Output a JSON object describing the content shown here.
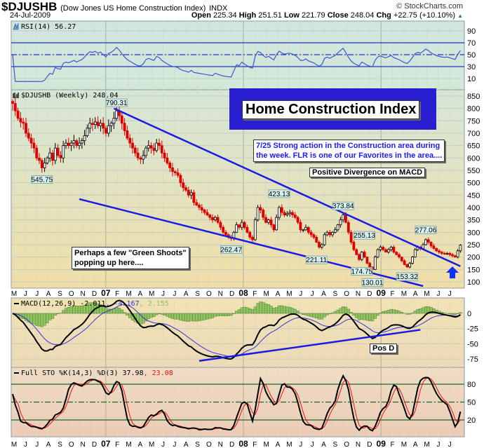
{
  "header": {
    "symbol": "$DJUSHB",
    "name": "(Dow Jones US Home Construction Index)",
    "exchange": "INDX",
    "copyright": "© StockCharts.com",
    "date": "24-Jul-2009",
    "open_label": "Open",
    "open": "225.34",
    "high_label": "High",
    "high": "251.51",
    "low_label": "Low",
    "low": "221.79",
    "close_label": "Close",
    "close": "248.04",
    "chg_label": "Chg",
    "chg": "+22.75 (+10.10%)",
    "chg_icon": "up-triangle-icon"
  },
  "annotations": {
    "title_box": "Home Construction Index",
    "note_line1": "7/25  Strong action in the Construction area during",
    "note_line2": "the week.  FLR is one of our Favorites in the area....",
    "divergence": "Positive Divergence on MACD",
    "shoots_line1": "Perhaps a few \"Green Shoots\"",
    "shoots_line2": "popping up here....",
    "pos_d": "Pos D"
  },
  "colors": {
    "up_candle": "#ffffff",
    "down_candle": "#e00000",
    "trendline": "#1a1ae6",
    "macd_hist": "#8fc45e",
    "rsi": "#3a56d6",
    "signal": "#3333dd",
    "stoch_d": "#ee1111",
    "note_text": "#1a1aff",
    "title_box_bg": "#2a1fd0"
  },
  "chart_data": [
    {
      "type": "line",
      "panel": "RSI",
      "legend": "RSI(14) 56.27",
      "ylim": [
        0,
        100
      ],
      "yticks": [
        "90",
        "70",
        "50",
        "30",
        "10"
      ],
      "reference_lines": [
        70,
        50,
        30
      ]
    },
    {
      "type": "candlestick",
      "panel": "price",
      "legend": "$DJUSHB (Weekly) 248.04",
      "ylim": [
        80,
        870
      ],
      "yticks": [
        "850",
        "800",
        "750",
        "700",
        "650",
        "600",
        "550",
        "500",
        "450",
        "400",
        "350",
        "300",
        "250",
        "200",
        "150",
        "100"
      ],
      "x_start": "May 2006",
      "x_end": "24-Jul-2009",
      "frequency": "weekly",
      "closes": [
        820,
        790,
        760,
        745,
        740,
        700,
        680,
        660,
        640,
        600,
        590,
        560,
        580,
        600,
        620,
        590,
        640,
        610,
        600,
        650,
        660,
        650,
        660,
        670,
        650,
        660,
        670,
        690,
        720,
        740,
        735,
        745,
        730,
        740,
        720,
        700,
        730,
        740,
        760,
        790,
        770,
        740,
        710,
        680,
        660,
        640,
        620,
        600,
        595,
        610,
        640,
        650,
        640,
        630,
        660,
        650,
        620,
        600,
        580,
        560,
        545,
        540,
        530,
        500,
        480,
        470,
        450,
        460,
        420,
        410,
        400,
        390,
        380,
        370,
        360,
        350,
        360,
        340,
        320,
        300,
        290,
        280,
        275,
        300,
        330,
        320,
        340,
        320,
        300,
        280,
        270,
        350,
        400,
        390,
        360,
        340,
        350,
        330,
        310,
        360,
        400,
        380,
        370,
        375,
        380,
        370,
        360,
        340,
        310,
        310,
        320,
        300,
        290,
        280,
        260,
        240,
        250,
        290,
        300,
        290,
        300,
        310,
        330,
        350,
        370,
        340,
        300,
        260,
        230,
        210,
        190,
        220,
        200,
        175,
        160,
        150,
        200,
        230,
        240,
        230,
        220,
        230,
        240,
        220,
        210,
        200,
        185,
        170,
        160,
        175,
        200,
        230,
        240,
        235,
        250,
        270,
        260,
        245,
        235,
        225,
        220,
        215,
        213,
        215,
        210,
        205,
        200,
        225,
        248
      ],
      "point_labels": [
        {
          "week": 11,
          "value": 545.75,
          "text": "545.75",
          "pos": "below"
        },
        {
          "week": 39,
          "value": 790.31,
          "text": "790.31",
          "pos": "above"
        },
        {
          "week": 82,
          "value": 262.47,
          "text": "262.47",
          "pos": "below"
        },
        {
          "week": 100,
          "value": 423.13,
          "text": "423.13",
          "pos": "above"
        },
        {
          "week": 124,
          "value": 373.84,
          "text": "373.84",
          "pos": "above"
        },
        {
          "week": 114,
          "value": 221.11,
          "text": "221.11",
          "pos": "below"
        },
        {
          "week": 132,
          "value": 255.13,
          "text": "255.13",
          "pos": "above"
        },
        {
          "week": 131,
          "value": 174.75,
          "text": "174.75",
          "pos": "below"
        },
        {
          "week": 135,
          "value": 130.01,
          "text": "130.01",
          "pos": "below"
        },
        {
          "week": 148,
          "value": 153.32,
          "text": "153.32",
          "pos": "below"
        },
        {
          "week": 155,
          "value": 277.06,
          "text": "277.06",
          "pos": "above"
        }
      ],
      "trendlines": [
        {
          "from": {
            "week": 38,
            "value": 800
          },
          "to": {
            "week": 168,
            "value": 163
          }
        },
        {
          "from": {
            "week": 25,
            "value": 434
          },
          "to": {
            "week": 154,
            "value": 83
          }
        }
      ]
    },
    {
      "type": "line",
      "panel": "MACD",
      "legend_main": "MACD(12,26,9) -2.011",
      "legend_signal": ", -4.167",
      "legend_hist": ", 2.155",
      "ylim": [
        -90,
        25
      ],
      "yticks": [
        "0",
        "-25",
        "-50",
        "-75"
      ],
      "trendline": {
        "from": {
          "week": 70,
          "value": -78
        },
        "to": {
          "week": 153,
          "value": -27
        }
      }
    },
    {
      "type": "line",
      "panel": "Full STO",
      "legend_main": "Full STO %K(14,3) %D(3) 37.98",
      "legend_d": ", 23.08",
      "ylim": [
        0,
        100
      ],
      "yticks": [
        "80",
        "50",
        "20"
      ],
      "reference_lines": [
        80,
        50,
        20
      ]
    }
  ],
  "x_axis": {
    "months": [
      "M",
      "J",
      "J",
      "A",
      "S",
      "O",
      "N",
      "D",
      "07",
      "F",
      "M",
      "A",
      "M",
      "J",
      "J",
      "A",
      "S",
      "O",
      "N",
      "D",
      "08",
      "F",
      "M",
      "A",
      "M",
      "J",
      "J",
      "A",
      "S",
      "O",
      "N",
      "D",
      "09",
      "F",
      "M",
      "A",
      "M",
      "J",
      "J"
    ]
  }
}
